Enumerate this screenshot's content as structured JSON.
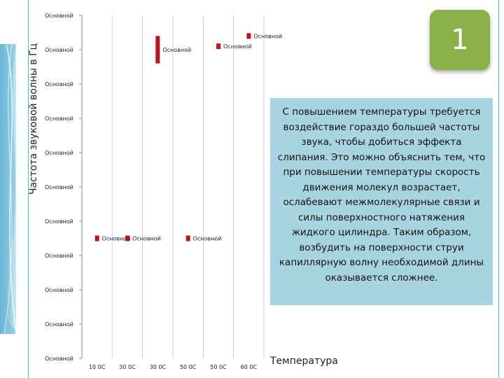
{
  "slide": {
    "number": "1",
    "note": "С повышением температуры требуется воздействие гораздо большей частоты звука, чтобы добиться эффекта слипания. Это можно объяснить тем, что при повышении температуры скорость движения молекул возрастает, ослабевают межмолекулярные связи и силы поверхностного натяжения жидкого цилиндра. Таким образом, возбудить на поверхности струи капиллярную волну необходимой длины оказывается сложнее.",
    "accent_color": "#8ab04a",
    "note_bg": "#a8d4e2"
  },
  "chart_data": {
    "type": "scatter",
    "ylabel": "Частота звуковой волны в Гц",
    "xlabel": "Температура",
    "x_tick_labels": [
      "10 0С",
      "30 0С",
      "30 0С",
      "50 0С",
      "50 0С",
      "60 0С"
    ],
    "y_tick_labels": [
      "Основной",
      "Основной",
      "Основной",
      "Основной",
      "Основной",
      "Основной",
      "Основной",
      "Основной",
      "Основной",
      "Основной",
      "Основной"
    ],
    "grid": true,
    "marker_color": "#c0141c",
    "points": [
      {
        "x": 1,
        "y": 3.5,
        "label": "Основной"
      },
      {
        "x": 2,
        "y": 3.5,
        "label": "Основной"
      },
      {
        "x": 3,
        "y": 9.0,
        "label": "Основной",
        "range": [
          8.6,
          9.4
        ]
      },
      {
        "x": 4,
        "y": 3.5,
        "label": "Основной"
      },
      {
        "x": 5,
        "y": 9.1,
        "label": "Основной"
      },
      {
        "x": 6,
        "y": 9.4,
        "label": "Основной"
      }
    ]
  }
}
